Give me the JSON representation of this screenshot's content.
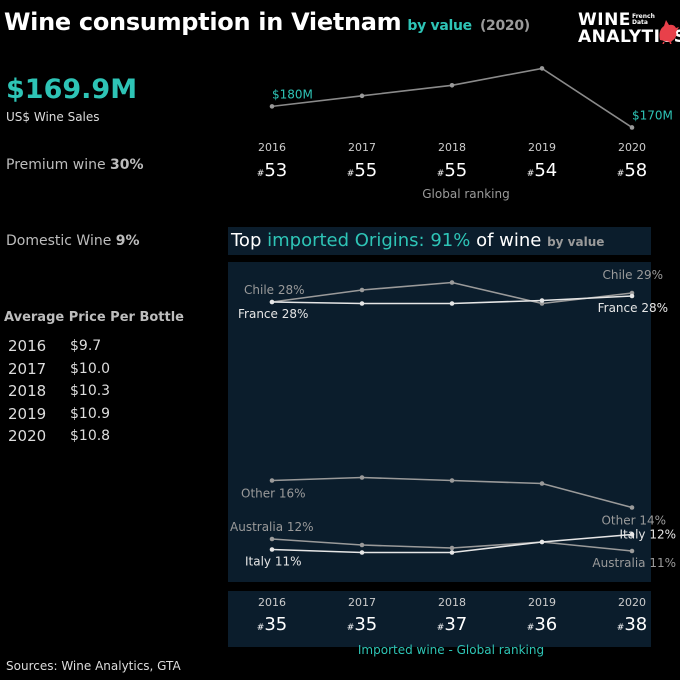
{
  "header": {
    "title": "Wine consumption in Vietnam",
    "subtitle": "by value",
    "year": "(2020)"
  },
  "logo": {
    "line1": "WINE",
    "line2": "ANALYTICS",
    "tag1": "French",
    "tag2": "Data",
    "accent": "#e8404a"
  },
  "summary": {
    "sales_value": "$169.9M",
    "sales_label": "US$ Wine Sales",
    "premium_label": "Premium wine",
    "premium_value": "30%",
    "domestic_label": "Domestic Wine",
    "domestic_value": "9%"
  },
  "avg_price": {
    "heading": "Average Price Per Bottle",
    "rows": [
      {
        "year": "2016",
        "price": "$9.7"
      },
      {
        "year": "2017",
        "price": "$10.0"
      },
      {
        "year": "2018",
        "price": "$10.3"
      },
      {
        "year": "2019",
        "price": "$10.9"
      },
      {
        "year": "2020",
        "price": "$10.8"
      }
    ]
  },
  "global_ranking": {
    "caption": "Global ranking",
    "years": [
      "2016",
      "2017",
      "2018",
      "2019",
      "2020"
    ],
    "ranks": [
      "53",
      "55",
      "55",
      "54",
      "58"
    ],
    "hash": "#"
  },
  "origins": {
    "title_pre": "Top",
    "title_teal": "imported Origins: 91%",
    "title_post": "of wine",
    "title_small": "by value"
  },
  "import_ranking": {
    "caption": "Imported wine - Global ranking",
    "years": [
      "2016",
      "2017",
      "2018",
      "2019",
      "2020"
    ],
    "ranks": [
      "35",
      "35",
      "37",
      "36",
      "38"
    ],
    "hash": "#"
  },
  "footer": {
    "source": "Sources: Wine Analytics, GTA"
  },
  "colors": {
    "teal": "#2ec4b6",
    "panel": "#0b1d2c",
    "grey": "#9a9a9a"
  },
  "chart_data": [
    {
      "type": "line",
      "x": [
        "2016",
        "2017",
        "2018",
        "2019",
        "2020"
      ],
      "series": [
        {
          "values": [
            180,
            185,
            190,
            198,
            170
          ]
        }
      ],
      "unit": "US$ M",
      "labels": [
        {
          "index": 0,
          "text": "$180M"
        },
        {
          "index": 4,
          "text": "$170M"
        }
      ],
      "ylim": [
        165,
        202
      ]
    },
    {
      "type": "line",
      "x": [
        "2016",
        "2017",
        "2018",
        "2019",
        "2020"
      ],
      "unit": "% share by value",
      "ylim": [
        10,
        30
      ],
      "series": [
        {
          "name": "Chile",
          "values": [
            28,
            28.8,
            29.3,
            27.9,
            28.6
          ],
          "color": "#9a9a9a",
          "start_label": "Chile 28%",
          "end_label": "Chile 29%"
        },
        {
          "name": "France",
          "values": [
            28,
            27.9,
            27.9,
            28.1,
            28.4
          ],
          "color": "#e6e6e6",
          "start_label": "France 28%",
          "end_label": "France 28%"
        },
        {
          "name": "Other",
          "values": [
            16.1,
            16.3,
            16.1,
            15.9,
            14.3
          ],
          "color": "#9a9a9a",
          "start_label": "Other 16%",
          "end_label": "Other 14%"
        },
        {
          "name": "Australia",
          "values": [
            12.2,
            11.8,
            11.6,
            12.0,
            11.4
          ],
          "color": "#9a9a9a",
          "start_label": "Australia 12%",
          "end_label": "Australia 11%"
        },
        {
          "name": "Italy",
          "values": [
            11.5,
            11.3,
            11.3,
            12.0,
            12.5
          ],
          "color": "#e6e6e6",
          "start_label": "Italy 11%",
          "end_label": "Italy 12%"
        }
      ]
    }
  ]
}
